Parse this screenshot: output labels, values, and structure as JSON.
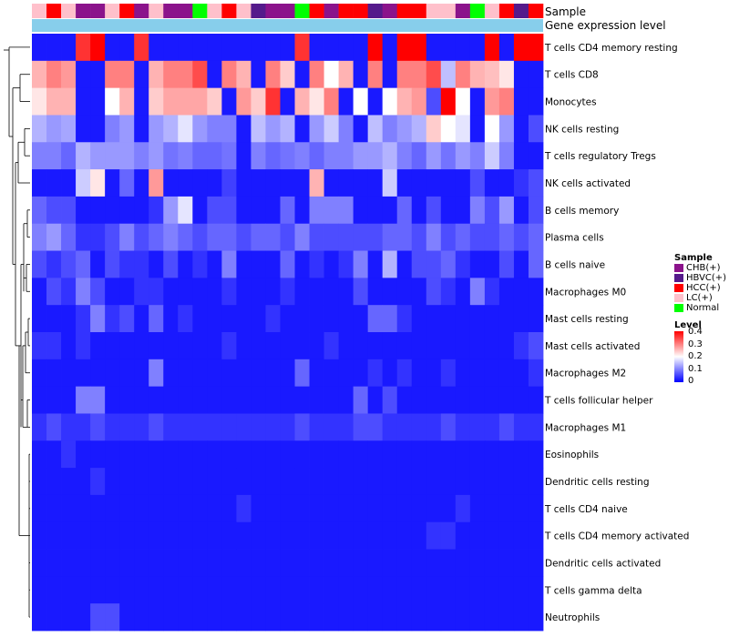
{
  "chart_data": {
    "type": "heatmap",
    "annotation_track_labels": [
      "Sample",
      "Gene expression level"
    ],
    "sample_groups": {
      "CHB(+)": "#8b138b",
      "HBVC(+)": "#551a8b",
      "HCC(+)": "#ff0000",
      "LC(+)": "#ffc0cb",
      "Normal": "#00ff00"
    },
    "sample_annotation": [
      "LC(+)",
      "HCC(+)",
      "LC(+)",
      "CHB(+)",
      "CHB(+)",
      "LC(+)",
      "HCC(+)",
      "CHB(+)",
      "LC(+)",
      "CHB(+)",
      "CHB(+)",
      "Normal",
      "LC(+)",
      "HCC(+)",
      "LC(+)",
      "HBVC(+)",
      "CHB(+)",
      "CHB(+)",
      "Normal",
      "HCC(+)",
      "CHB(+)",
      "HCC(+)",
      "HCC(+)",
      "HBVC(+)",
      "CHB(+)",
      "HCC(+)",
      "HCC(+)",
      "LC(+)",
      "LC(+)",
      "CHB(+)",
      "Normal",
      "LC(+)",
      "HCC(+)",
      "HBVC(+)",
      "HCC(+)"
    ],
    "gene_expression_color": "#87ceeb",
    "rows": [
      "T cells CD4 memory resting",
      "T cells CD8",
      "Monocytes",
      "NK cells resting",
      "T cells regulatory  Tregs",
      "NK cells activated",
      "B cells memory",
      "Plasma cells",
      "B cells naive",
      "Macrophages M0",
      "Mast cells resting",
      "Mast cells activated",
      "Macrophages M2",
      "T cells follicular helper",
      "Macrophages M1",
      "Eosinophils",
      "Dendritic cells resting",
      "T cells CD4 naive",
      "T cells CD4 memory activated",
      "Dendritic cells activated",
      "T cells gamma delta",
      "Neutrophils"
    ],
    "values": [
      [
        0.02,
        0.02,
        0.02,
        0.36,
        0.42,
        0.02,
        0.02,
        0.36,
        0.02,
        0.02,
        0.02,
        0.02,
        0.02,
        0.02,
        0.02,
        0.02,
        0.02,
        0.02,
        0.36,
        0.02,
        0.02,
        0.02,
        0.02,
        0.4,
        0.02,
        0.42,
        0.42,
        0.02,
        0.02,
        0.02,
        0.02,
        0.42,
        0.02,
        0.42,
        0.42
      ],
      [
        0.26,
        0.3,
        0.28,
        0.02,
        0.02,
        0.3,
        0.3,
        0.02,
        0.26,
        0.3,
        0.3,
        0.34,
        0.02,
        0.3,
        0.26,
        0.02,
        0.3,
        0.24,
        0.02,
        0.3,
        0.2,
        0.26,
        0.02,
        0.3,
        0.02,
        0.3,
        0.3,
        0.34,
        0.15,
        0.3,
        0.26,
        0.25,
        0.22,
        0.02,
        0.02
      ],
      [
        0.22,
        0.26,
        0.26,
        0.02,
        0.02,
        0.2,
        0.26,
        0.02,
        0.24,
        0.27,
        0.27,
        0.27,
        0.24,
        0.02,
        0.28,
        0.24,
        0.36,
        0.02,
        0.26,
        0.22,
        0.3,
        0.02,
        0.2,
        0.02,
        0.2,
        0.26,
        0.28,
        0.06,
        0.42,
        0.2,
        0.02,
        0.28,
        0.3,
        0.02,
        0.02
      ],
      [
        0.14,
        0.12,
        0.13,
        0.02,
        0.02,
        0.1,
        0.12,
        0.02,
        0.12,
        0.14,
        0.18,
        0.12,
        0.1,
        0.1,
        0.02,
        0.15,
        0.12,
        0.14,
        0.02,
        0.12,
        0.16,
        0.1,
        0.02,
        0.15,
        0.1,
        0.12,
        0.14,
        0.24,
        0.2,
        0.18,
        0.02,
        0.2,
        0.12,
        0.02,
        0.06
      ],
      [
        0.1,
        0.1,
        0.08,
        0.14,
        0.12,
        0.12,
        0.12,
        0.1,
        0.12,
        0.09,
        0.1,
        0.08,
        0.08,
        0.09,
        0.02,
        0.1,
        0.08,
        0.09,
        0.1,
        0.08,
        0.1,
        0.1,
        0.12,
        0.12,
        0.14,
        0.1,
        0.08,
        0.12,
        0.09,
        0.12,
        0.1,
        0.16,
        0.1,
        0.02,
        0.02
      ],
      [
        0.02,
        0.02,
        0.02,
        0.16,
        0.22,
        0.02,
        0.08,
        0.02,
        0.28,
        0.02,
        0.02,
        0.02,
        0.02,
        0.05,
        0.02,
        0.02,
        0.02,
        0.02,
        0.02,
        0.26,
        0.02,
        0.02,
        0.02,
        0.02,
        0.16,
        0.02,
        0.02,
        0.02,
        0.02,
        0.02,
        0.06,
        0.02,
        0.02,
        0.04,
        0.06
      ],
      [
        0.08,
        0.06,
        0.06,
        0.02,
        0.02,
        0.02,
        0.02,
        0.02,
        0.04,
        0.12,
        0.18,
        0.02,
        0.06,
        0.06,
        0.02,
        0.02,
        0.02,
        0.08,
        0.02,
        0.1,
        0.1,
        0.1,
        0.02,
        0.02,
        0.02,
        0.08,
        0.02,
        0.06,
        0.02,
        0.02,
        0.1,
        0.06,
        0.12,
        0.02,
        0.06
      ],
      [
        0.1,
        0.12,
        0.08,
        0.04,
        0.04,
        0.06,
        0.1,
        0.06,
        0.08,
        0.1,
        0.08,
        0.06,
        0.08,
        0.08,
        0.06,
        0.08,
        0.08,
        0.06,
        0.1,
        0.06,
        0.06,
        0.06,
        0.06,
        0.06,
        0.08,
        0.08,
        0.06,
        0.1,
        0.06,
        0.08,
        0.06,
        0.06,
        0.08,
        0.06,
        0.08
      ],
      [
        0.06,
        0.04,
        0.06,
        0.08,
        0.02,
        0.06,
        0.04,
        0.04,
        0.02,
        0.06,
        0.02,
        0.04,
        0.02,
        0.1,
        0.02,
        0.02,
        0.02,
        0.08,
        0.02,
        0.04,
        0.02,
        0.04,
        0.1,
        0.02,
        0.14,
        0.02,
        0.06,
        0.06,
        0.08,
        0.04,
        0.02,
        0.02,
        0.06,
        0.02,
        0.08
      ],
      [
        0.02,
        0.06,
        0.04,
        0.1,
        0.06,
        0.02,
        0.02,
        0.04,
        0.04,
        0.02,
        0.02,
        0.02,
        0.02,
        0.04,
        0.02,
        0.02,
        0.02,
        0.04,
        0.02,
        0.02,
        0.02,
        0.02,
        0.06,
        0.02,
        0.02,
        0.02,
        0.02,
        0.06,
        0.04,
        0.02,
        0.1,
        0.04,
        0.02,
        0.02,
        0.02
      ],
      [
        0.02,
        0.02,
        0.02,
        0.04,
        0.1,
        0.04,
        0.06,
        0.02,
        0.08,
        0.02,
        0.04,
        0.02,
        0.02,
        0.02,
        0.02,
        0.02,
        0.04,
        0.02,
        0.02,
        0.02,
        0.02,
        0.02,
        0.02,
        0.08,
        0.08,
        0.04,
        0.02,
        0.02,
        0.02,
        0.02,
        0.02,
        0.02,
        0.02,
        0.02,
        0.02
      ],
      [
        0.04,
        0.04,
        0.02,
        0.04,
        0.02,
        0.02,
        0.02,
        0.02,
        0.02,
        0.02,
        0.02,
        0.02,
        0.02,
        0.04,
        0.02,
        0.02,
        0.02,
        0.02,
        0.02,
        0.02,
        0.04,
        0.02,
        0.02,
        0.02,
        0.02,
        0.02,
        0.02,
        0.02,
        0.02,
        0.02,
        0.02,
        0.02,
        0.02,
        0.04,
        0.06
      ],
      [
        0.02,
        0.02,
        0.02,
        0.02,
        0.02,
        0.02,
        0.02,
        0.02,
        0.1,
        0.02,
        0.02,
        0.02,
        0.02,
        0.02,
        0.02,
        0.02,
        0.02,
        0.02,
        0.08,
        0.02,
        0.02,
        0.02,
        0.02,
        0.04,
        0.02,
        0.04,
        0.02,
        0.02,
        0.04,
        0.02,
        0.02,
        0.02,
        0.02,
        0.02,
        0.04
      ],
      [
        0.02,
        0.02,
        0.02,
        0.1,
        0.1,
        0.02,
        0.02,
        0.02,
        0.02,
        0.02,
        0.02,
        0.02,
        0.02,
        0.02,
        0.02,
        0.02,
        0.02,
        0.02,
        0.02,
        0.02,
        0.02,
        0.02,
        0.08,
        0.02,
        0.06,
        0.02,
        0.02,
        0.02,
        0.02,
        0.02,
        0.02,
        0.02,
        0.02,
        0.02,
        0.02
      ],
      [
        0.04,
        0.06,
        0.04,
        0.04,
        0.06,
        0.04,
        0.04,
        0.04,
        0.06,
        0.04,
        0.04,
        0.04,
        0.04,
        0.04,
        0.04,
        0.04,
        0.04,
        0.04,
        0.06,
        0.04,
        0.04,
        0.04,
        0.06,
        0.06,
        0.04,
        0.04,
        0.04,
        0.04,
        0.06,
        0.04,
        0.04,
        0.04,
        0.06,
        0.04,
        0.04
      ],
      [
        0.02,
        0.02,
        0.04,
        0.02,
        0.02,
        0.02,
        0.02,
        0.02,
        0.02,
        0.02,
        0.02,
        0.02,
        0.02,
        0.02,
        0.02,
        0.02,
        0.02,
        0.02,
        0.02,
        0.02,
        0.02,
        0.02,
        0.02,
        0.02,
        0.02,
        0.02,
        0.02,
        0.02,
        0.02,
        0.02,
        0.02,
        0.02,
        0.02,
        0.02,
        0.02
      ],
      [
        0.02,
        0.02,
        0.02,
        0.02,
        0.04,
        0.02,
        0.02,
        0.02,
        0.02,
        0.02,
        0.02,
        0.02,
        0.02,
        0.02,
        0.02,
        0.02,
        0.02,
        0.02,
        0.02,
        0.02,
        0.02,
        0.02,
        0.02,
        0.02,
        0.02,
        0.02,
        0.02,
        0.02,
        0.02,
        0.02,
        0.02,
        0.02,
        0.02,
        0.02,
        0.02
      ],
      [
        0.02,
        0.02,
        0.02,
        0.02,
        0.02,
        0.02,
        0.02,
        0.02,
        0.02,
        0.02,
        0.02,
        0.02,
        0.02,
        0.02,
        0.04,
        0.02,
        0.02,
        0.02,
        0.02,
        0.02,
        0.02,
        0.02,
        0.02,
        0.02,
        0.02,
        0.02,
        0.02,
        0.02,
        0.02,
        0.04,
        0.02,
        0.02,
        0.02,
        0.02,
        0.02
      ],
      [
        0.02,
        0.02,
        0.02,
        0.02,
        0.02,
        0.02,
        0.02,
        0.02,
        0.02,
        0.02,
        0.02,
        0.02,
        0.02,
        0.02,
        0.02,
        0.02,
        0.02,
        0.02,
        0.02,
        0.02,
        0.02,
        0.02,
        0.02,
        0.02,
        0.02,
        0.02,
        0.02,
        0.04,
        0.04,
        0.02,
        0.02,
        0.02,
        0.02,
        0.02,
        0.02
      ],
      [
        0.02,
        0.02,
        0.02,
        0.02,
        0.02,
        0.02,
        0.02,
        0.02,
        0.02,
        0.02,
        0.02,
        0.02,
        0.02,
        0.02,
        0.02,
        0.02,
        0.02,
        0.02,
        0.02,
        0.02,
        0.02,
        0.02,
        0.02,
        0.02,
        0.02,
        0.02,
        0.02,
        0.02,
        0.02,
        0.02,
        0.02,
        0.02,
        0.02,
        0.02,
        0.02
      ],
      [
        0.02,
        0.02,
        0.02,
        0.02,
        0.02,
        0.02,
        0.02,
        0.02,
        0.02,
        0.02,
        0.02,
        0.02,
        0.02,
        0.02,
        0.02,
        0.02,
        0.02,
        0.02,
        0.02,
        0.02,
        0.02,
        0.02,
        0.02,
        0.02,
        0.02,
        0.02,
        0.02,
        0.02,
        0.02,
        0.02,
        0.02,
        0.02,
        0.02,
        0.02,
        0.02
      ],
      [
        0.02,
        0.02,
        0.02,
        0.02,
        0.06,
        0.06,
        0.02,
        0.02,
        0.02,
        0.02,
        0.02,
        0.02,
        0.02,
        0.02,
        0.02,
        0.02,
        0.02,
        0.02,
        0.02,
        0.02,
        0.02,
        0.02,
        0.02,
        0.02,
        0.02,
        0.02,
        0.02,
        0.02,
        0.02,
        0.02,
        0.02,
        0.02,
        0.02,
        0.02,
        0.02
      ]
    ],
    "color_scale": {
      "min": 0,
      "mid": 0.2,
      "max": 0.4,
      "low": "#0000ff",
      "mid_color": "#ffffff",
      "high": "#ff0000"
    },
    "legend": {
      "sample_title": "Sample",
      "sample_entries": [
        "CHB(+)",
        "HBVC(+)",
        "HCC(+)",
        "LC(+)",
        "Normal"
      ],
      "level_title": "Level",
      "level_ticks": [
        "0.4",
        "0.3",
        "0.2",
        "0.1",
        "0"
      ]
    },
    "row_dendrogram": true
  }
}
